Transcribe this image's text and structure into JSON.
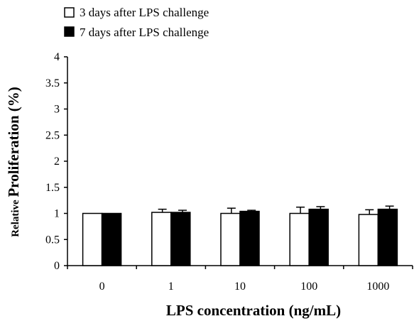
{
  "chart_data": {
    "type": "bar",
    "categories": [
      "0",
      "1",
      "10",
      "100",
      "1000"
    ],
    "series": [
      {
        "name": "3 days after LPS challenge",
        "values": [
          1.0,
          1.02,
          1.0,
          1.0,
          0.98
        ],
        "errors": [
          0.0,
          0.06,
          0.1,
          0.12,
          0.09
        ],
        "color": "#ffffff"
      },
      {
        "name": "7 days after LPS challenge",
        "values": [
          1.0,
          1.02,
          1.04,
          1.08,
          1.08
        ],
        "errors": [
          0.0,
          0.04,
          0.02,
          0.05,
          0.06
        ],
        "color": "#000000"
      }
    ],
    "xlabel": "LPS concentration (ng/mL)",
    "ylabel_prefix": "Relative",
    "ylabel_main": "Proliferation (%)",
    "ylim": [
      0,
      4
    ],
    "yticks": [
      "0",
      "0.5",
      "1",
      "1.5",
      "2",
      "2.5",
      "3",
      "3.5",
      "4"
    ],
    "legend_position": "top-left",
    "grid": false
  }
}
